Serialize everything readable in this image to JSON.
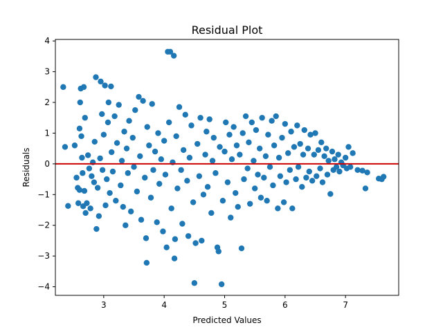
{
  "chart_data": {
    "type": "scatter",
    "title": "Residual Plot",
    "xlabel": "Predicted Values",
    "ylabel": "Residuals",
    "xlim": [
      2.2,
      7.88
    ],
    "ylim": [
      -4.28,
      4.05
    ],
    "xticks": [
      3,
      4,
      5,
      6,
      7
    ],
    "yticks": [
      -4,
      -3,
      -2,
      -1,
      0,
      1,
      2,
      3,
      4
    ],
    "grid": false,
    "point_color": "#1f77b4",
    "reference_line": {
      "y": 0,
      "color": "#cc0000"
    },
    "points_note": "dense cloud; representative sample listed",
    "points": [
      [
        2.33,
        2.5
      ],
      [
        2.36,
        0.55
      ],
      [
        2.41,
        -1.37
      ],
      [
        2.52,
        0.6
      ],
      [
        2.55,
        -0.45
      ],
      [
        2.57,
        -0.78
      ],
      [
        2.58,
        -1.28
      ],
      [
        2.6,
        1.15
      ],
      [
        2.6,
        -0.85
      ],
      [
        2.61,
        2.0
      ],
      [
        2.62,
        2.45
      ],
      [
        2.63,
        0.9
      ],
      [
        2.64,
        0.2
      ],
      [
        2.65,
        -0.3
      ],
      [
        2.66,
        -1.38
      ],
      [
        2.67,
        2.5
      ],
      [
        2.68,
        -0.88
      ],
      [
        2.69,
        1.5
      ],
      [
        2.7,
        -1.6
      ],
      [
        2.72,
        -1.28
      ],
      [
        2.74,
        0.28
      ],
      [
        2.76,
        -0.15
      ],
      [
        2.78,
        -1.45
      ],
      [
        2.8,
        -0.4
      ],
      [
        2.82,
        0.05
      ],
      [
        2.84,
        -0.6
      ],
      [
        2.85,
        0.72
      ],
      [
        2.87,
        2.82
      ],
      [
        2.88,
        -2.12
      ],
      [
        2.9,
        -0.78
      ],
      [
        2.92,
        -1.7
      ],
      [
        2.94,
        0.18
      ],
      [
        2.95,
        2.68
      ],
      [
        2.97,
        1.62
      ],
      [
        2.98,
        -0.2
      ],
      [
        3.0,
        0.95
      ],
      [
        3.02,
        2.55
      ],
      [
        3.03,
        -1.35
      ],
      [
        3.05,
        -0.5
      ],
      [
        3.07,
        1.35
      ],
      [
        3.08,
        2.0
      ],
      [
        3.1,
        -0.95
      ],
      [
        3.12,
        2.52
      ],
      [
        3.13,
        0.38
      ],
      [
        3.15,
        -0.25
      ],
      [
        3.18,
        1.55
      ],
      [
        3.2,
        -1.2
      ],
      [
        3.22,
        0.68
      ],
      [
        3.25,
        1.92
      ],
      [
        3.28,
        -0.7
      ],
      [
        3.3,
        0.1
      ],
      [
        3.32,
        -1.4
      ],
      [
        3.34,
        1.05
      ],
      [
        3.36,
        -2.0
      ],
      [
        3.38,
        0.5
      ],
      [
        3.4,
        -0.3
      ],
      [
        3.42,
        1.4
      ],
      [
        3.45,
        -1.55
      ],
      [
        3.48,
        0.85
      ],
      [
        3.5,
        -0.1
      ],
      [
        3.52,
        1.75
      ],
      [
        3.55,
        -0.9
      ],
      [
        3.58,
        2.18
      ],
      [
        3.6,
        0.25
      ],
      [
        3.62,
        -1.82
      ],
      [
        3.65,
        2.05
      ],
      [
        3.68,
        -0.45
      ],
      [
        3.7,
        -2.42
      ],
      [
        3.71,
        -3.22
      ],
      [
        3.72,
        1.2
      ],
      [
        3.75,
        0.6
      ],
      [
        3.78,
        -1.1
      ],
      [
        3.8,
        1.95
      ],
      [
        3.82,
        -0.2
      ],
      [
        3.85,
        0.4
      ],
      [
        3.88,
        -1.9
      ],
      [
        3.9,
        1.0
      ],
      [
        3.92,
        -0.65
      ],
      [
        3.95,
        0.15
      ],
      [
        3.98,
        -2.2
      ],
      [
        4.0,
        0.75
      ],
      [
        4.02,
        -0.35
      ],
      [
        4.04,
        -2.72
      ],
      [
        4.06,
        3.65
      ],
      [
        4.08,
        1.35
      ],
      [
        4.1,
        3.65
      ],
      [
        4.12,
        -1.45
      ],
      [
        4.14,
        0.05
      ],
      [
        4.16,
        3.52
      ],
      [
        4.17,
        -3.08
      ],
      [
        4.18,
        -2.45
      ],
      [
        4.2,
        0.9
      ],
      [
        4.22,
        -0.8
      ],
      [
        4.25,
        1.85
      ],
      [
        4.28,
        -0.2
      ],
      [
        4.3,
        -1.95
      ],
      [
        4.32,
        0.45
      ],
      [
        4.35,
        1.6
      ],
      [
        4.38,
        -0.55
      ],
      [
        4.4,
        -2.35
      ],
      [
        4.42,
        0.2
      ],
      [
        4.45,
        1.25
      ],
      [
        4.48,
        -1.25
      ],
      [
        4.5,
        -3.88
      ],
      [
        4.52,
        -2.58
      ],
      [
        4.55,
        0.65
      ],
      [
        4.58,
        -0.4
      ],
      [
        4.6,
        1.5
      ],
      [
        4.62,
        -2.5
      ],
      [
        4.65,
        -1.0
      ],
      [
        4.68,
        0.3
      ],
      [
        4.7,
        1.05
      ],
      [
        4.72,
        -0.75
      ],
      [
        4.75,
        1.45
      ],
      [
        4.78,
        -1.6
      ],
      [
        4.8,
        0.1
      ],
      [
        4.82,
        0.85
      ],
      [
        4.85,
        -0.3
      ],
      [
        4.88,
        -2.72
      ],
      [
        4.9,
        -2.85
      ],
      [
        4.92,
        0.55
      ],
      [
        4.95,
        -3.92
      ],
      [
        4.97,
        -1.2
      ],
      [
        5.0,
        0.4
      ],
      [
        5.02,
        1.35
      ],
      [
        5.05,
        -0.6
      ],
      [
        5.08,
        0.95
      ],
      [
        5.1,
        -1.75
      ],
      [
        5.12,
        0.15
      ],
      [
        5.15,
        1.2
      ],
      [
        5.18,
        -0.95
      ],
      [
        5.2,
        0.6
      ],
      [
        5.22,
        -1.4
      ],
      [
        5.25,
        0.3
      ],
      [
        5.28,
        -2.75
      ],
      [
        5.3,
        1.0
      ],
      [
        5.32,
        -0.5
      ],
      [
        5.35,
        1.55
      ],
      [
        5.38,
        -0.15
      ],
      [
        5.4,
        0.7
      ],
      [
        5.42,
        -1.3
      ],
      [
        5.45,
        1.35
      ],
      [
        5.48,
        0.1
      ],
      [
        5.5,
        -0.8
      ],
      [
        5.52,
        1.1
      ],
      [
        5.55,
        -0.35
      ],
      [
        5.58,
        0.5
      ],
      [
        5.6,
        -1.1
      ],
      [
        5.62,
        1.5
      ],
      [
        5.65,
        -0.45
      ],
      [
        5.68,
        0.25
      ],
      [
        5.7,
        -1.2
      ],
      [
        5.72,
        0.95
      ],
      [
        5.75,
        -0.1
      ],
      [
        5.78,
        1.4
      ],
      [
        5.8,
        -0.7
      ],
      [
        5.82,
        0.6
      ],
      [
        5.85,
        1.55
      ],
      [
        5.88,
        -1.45
      ],
      [
        5.9,
        0.2
      ],
      [
        5.92,
        -0.4
      ],
      [
        5.95,
        0.85
      ],
      [
        5.98,
        -1.25
      ],
      [
        6.0,
        1.3
      ],
      [
        6.02,
        -0.6
      ],
      [
        6.05,
        0.35
      ],
      [
        6.08,
        -0.2
      ],
      [
        6.1,
        1.05
      ],
      [
        6.12,
        -1.45
      ],
      [
        6.15,
        0.55
      ],
      [
        6.18,
        -0.5
      ],
      [
        6.2,
        1.25
      ],
      [
        6.22,
        -0.1
      ],
      [
        6.25,
        0.65
      ],
      [
        6.28,
        -0.75
      ],
      [
        6.3,
        0.3
      ],
      [
        6.32,
        1.1
      ],
      [
        6.35,
        -0.45
      ],
      [
        6.38,
        0.5
      ],
      [
        6.4,
        -0.25
      ],
      [
        6.42,
        0.95
      ],
      [
        6.45,
        -0.55
      ],
      [
        6.48,
        0.3
      ],
      [
        6.5,
        1.0
      ],
      [
        6.52,
        -0.4
      ],
      [
        6.55,
        0.45
      ],
      [
        6.58,
        -0.15
      ],
      [
        6.6,
        0.7
      ],
      [
        6.62,
        -0.6
      ],
      [
        6.65,
        0.25
      ],
      [
        6.68,
        0.5
      ],
      [
        6.7,
        -0.35
      ],
      [
        6.72,
        0.1
      ],
      [
        6.75,
        -0.98
      ],
      [
        6.78,
        0.4
      ],
      [
        6.8,
        -0.2
      ],
      [
        6.82,
        0.15
      ],
      [
        6.85,
        -0.1
      ],
      [
        6.88,
        0.3
      ],
      [
        6.9,
        -0.25
      ],
      [
        6.93,
        0.05
      ],
      [
        6.96,
        -0.05
      ],
      [
        7.0,
        0.2
      ],
      [
        7.02,
        -0.15
      ],
      [
        7.05,
        0.55
      ],
      [
        7.08,
        -0.1
      ],
      [
        7.12,
        0.35
      ],
      [
        7.2,
        -0.2
      ],
      [
        7.28,
        -0.22
      ],
      [
        7.33,
        -0.8
      ],
      [
        7.36,
        -0.28
      ],
      [
        7.55,
        -0.48
      ],
      [
        7.6,
        -0.5
      ],
      [
        7.63,
        -0.42
      ]
    ]
  }
}
